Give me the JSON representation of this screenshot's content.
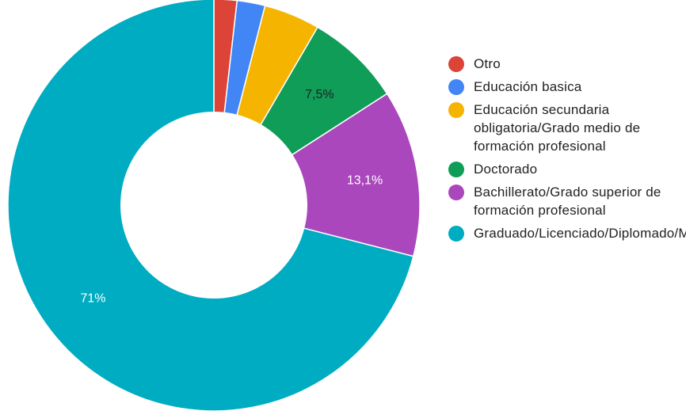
{
  "chart_data": {
    "type": "pie",
    "donut": true,
    "title": "",
    "legend_position": "right",
    "slices": [
      {
        "name": "Otro",
        "value": 1.8,
        "color": "#db4437",
        "label": ""
      },
      {
        "name": "Educación basica",
        "value": 2.2,
        "color": "#4285f4",
        "label": ""
      },
      {
        "name": "Educación secundaria obligatoria/Grado medio de formación profesional",
        "value": 4.4,
        "color": "#f4b400",
        "label": ""
      },
      {
        "name": "Doctorado",
        "value": 7.5,
        "color": "#0f9d58",
        "label": "7,5%"
      },
      {
        "name": "Bachillerato/Grado superior de formación profesional",
        "value": 13.1,
        "color": "#ab47bc",
        "label": "13,1%"
      },
      {
        "name": "Graduado/Licenciado/Diplomado/Máster",
        "value": 71.0,
        "color": "#00acc1",
        "label": "71%"
      }
    ]
  }
}
